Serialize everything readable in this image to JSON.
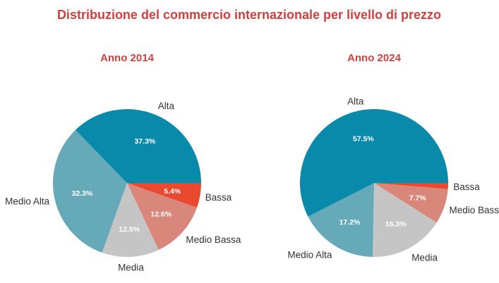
{
  "chart_data": [
    {
      "type": "pie",
      "title": "Distribuzione del commercio internazionale per livello di prezzo",
      "subtitle": "Anno 2014",
      "categories": [
        "Bassa",
        "Medio Bassa",
        "Media",
        "Medio Alta",
        "Alta"
      ],
      "values": [
        5.4,
        12.6,
        12.5,
        32.3,
        37.3
      ],
      "data_labels": [
        "5.4%",
        "12.6%",
        "12.5%",
        "32.3%",
        "37.3%"
      ],
      "colors": [
        "#e8492f",
        "#d8877a",
        "#c5c5c5",
        "#66aaba",
        "#0a8aab"
      ]
    },
    {
      "type": "pie",
      "subtitle": "Anno 2024",
      "categories": [
        "Bassa",
        "Medio Bassa",
        "Media",
        "Medio Alta",
        "Alta"
      ],
      "values": [
        1.3,
        7.7,
        16.3,
        17.2,
        57.5
      ],
      "data_labels": [
        "",
        "7.7%",
        "16.3%",
        "17.2%",
        "57.5%"
      ],
      "colors": [
        "#e8492f",
        "#d8877a",
        "#c5c5c5",
        "#66aaba",
        "#0a8aab"
      ]
    }
  ]
}
